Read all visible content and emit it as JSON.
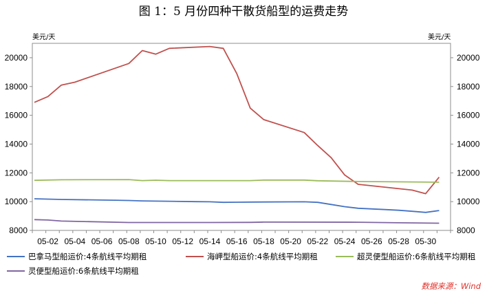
{
  "figure": {
    "title": "图 1：5 月份四种干散货船型的运费走势",
    "source": "数据来源：Wind",
    "source_color": "#e0302a"
  },
  "chart_data": {
    "type": "line",
    "y_unit_left": "美元/天",
    "y_unit_right": "美元/天",
    "ylim": [
      8000,
      21000
    ],
    "yticks": [
      8000,
      10000,
      12000,
      14000,
      16000,
      18000,
      20000
    ],
    "x_range": [
      "2024-05-01",
      "2024-05-31"
    ],
    "x_ticks": [
      "05-02",
      "05-04",
      "05-06",
      "05-08",
      "05-10",
      "05-12",
      "05-14",
      "05-16",
      "05-18",
      "05-20",
      "05-22",
      "05-24",
      "05-26",
      "05-28",
      "05-30"
    ],
    "x_tick_dates": [
      "2024-05-02",
      "2024-05-04",
      "2024-05-06",
      "2024-05-08",
      "2024-05-10",
      "2024-05-12",
      "2024-05-14",
      "2024-05-16",
      "2024-05-18",
      "2024-05-20",
      "2024-05-22",
      "2024-05-24",
      "2024-05-26",
      "2024-05-28",
      "2024-05-30"
    ],
    "grid": false,
    "legend_position": "bottom",
    "series": [
      {
        "name": "巴拿马型船运价:4条航线平均期租",
        "color": "#4472c4",
        "points": [
          [
            "2024-05-01",
            10200
          ],
          [
            "2024-05-03",
            10150
          ],
          [
            "2024-05-07",
            10100
          ],
          [
            "2024-05-08",
            10080
          ],
          [
            "2024-05-09",
            10050
          ],
          [
            "2024-05-13",
            10000
          ],
          [
            "2024-05-14",
            9990
          ],
          [
            "2024-05-15",
            9950
          ],
          [
            "2024-05-16",
            9960
          ],
          [
            "2024-05-17",
            9970
          ],
          [
            "2024-05-21",
            9990
          ],
          [
            "2024-05-22",
            9950
          ],
          [
            "2024-05-23",
            9800
          ],
          [
            "2024-05-24",
            9650
          ],
          [
            "2024-05-25",
            9540
          ],
          [
            "2024-05-27",
            9450
          ],
          [
            "2024-05-28",
            9400
          ],
          [
            "2024-05-29",
            9330
          ],
          [
            "2024-05-30",
            9250
          ],
          [
            "2024-05-31",
            9380
          ]
        ]
      },
      {
        "name": "海岬型船运价:4条航线平均期租",
        "color": "#c0504d",
        "points": [
          [
            "2024-05-01",
            16900
          ],
          [
            "2024-05-02",
            17300
          ],
          [
            "2024-05-03",
            18100
          ],
          [
            "2024-05-04",
            18300
          ],
          [
            "2024-05-08",
            19600
          ],
          [
            "2024-05-09",
            20500
          ],
          [
            "2024-05-10",
            20250
          ],
          [
            "2024-05-11",
            20650
          ],
          [
            "2024-05-14",
            20780
          ],
          [
            "2024-05-15",
            20650
          ],
          [
            "2024-05-16",
            18900
          ],
          [
            "2024-05-17",
            16500
          ],
          [
            "2024-05-18",
            15700
          ],
          [
            "2024-05-21",
            14800
          ],
          [
            "2024-05-22",
            13900
          ],
          [
            "2024-05-23",
            13050
          ],
          [
            "2024-05-24",
            11850
          ],
          [
            "2024-05-25",
            11200
          ],
          [
            "2024-05-29",
            10800
          ],
          [
            "2024-05-30",
            10550
          ],
          [
            "2024-05-31",
            11700
          ]
        ]
      },
      {
        "name": "超灵便型船运价:6条航线平均期租",
        "color": "#9bbb59",
        "points": [
          [
            "2024-05-01",
            11480
          ],
          [
            "2024-05-03",
            11520
          ],
          [
            "2024-05-08",
            11530
          ],
          [
            "2024-05-09",
            11460
          ],
          [
            "2024-05-10",
            11490
          ],
          [
            "2024-05-11",
            11460
          ],
          [
            "2024-05-17",
            11460
          ],
          [
            "2024-05-18",
            11500
          ],
          [
            "2024-05-21",
            11500
          ],
          [
            "2024-05-22",
            11450
          ],
          [
            "2024-05-25",
            11400
          ],
          [
            "2024-05-31",
            11350
          ]
        ]
      },
      {
        "name": "灵便型船运价:6条航线平均期租",
        "color": "#8064a2",
        "points": [
          [
            "2024-05-01",
            8750
          ],
          [
            "2024-05-02",
            8720
          ],
          [
            "2024-05-03",
            8650
          ],
          [
            "2024-05-08",
            8550
          ],
          [
            "2024-05-14",
            8550
          ],
          [
            "2024-05-17",
            8560
          ],
          [
            "2024-05-18",
            8580
          ],
          [
            "2024-05-25",
            8570
          ],
          [
            "2024-05-28",
            8530
          ],
          [
            "2024-05-31",
            8500
          ]
        ]
      }
    ]
  }
}
